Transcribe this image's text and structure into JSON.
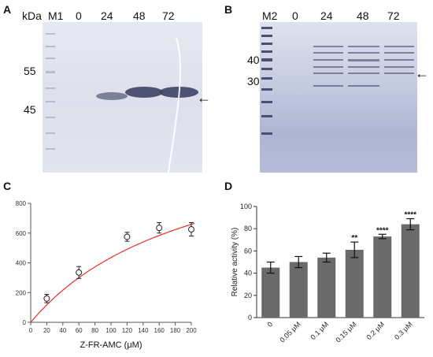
{
  "panel_a": {
    "label": "A",
    "unit": "kDa",
    "lanes": [
      "M1",
      "0",
      "24",
      "48",
      "72"
    ],
    "markers": [
      "55",
      "45"
    ],
    "arrow": "←"
  },
  "panel_b": {
    "label": "B",
    "lanes": [
      "M2",
      "0",
      "24",
      "48",
      "72"
    ],
    "markers": [
      "40",
      "30"
    ],
    "arrow": "←"
  },
  "panel_c": {
    "label": "C"
  },
  "panel_d": {
    "label": "D"
  },
  "chart_data": [
    {
      "type": "scatter",
      "xlabel": "Z-FR-AMC (μM)",
      "ylabel": "",
      "xlim": [
        0,
        200
      ],
      "ylim": [
        0,
        800
      ],
      "xticks": [
        "0",
        "20",
        "40",
        "60",
        "80",
        "100",
        "120",
        "140",
        "160",
        "180",
        "200"
      ],
      "yticks": [
        "0",
        "200",
        "400",
        "600",
        "800"
      ],
      "points": [
        {
          "x": 20,
          "y": 160,
          "err": 28
        },
        {
          "x": 60,
          "y": 335,
          "err": 40
        },
        {
          "x": 120,
          "y": 575,
          "err": 30
        },
        {
          "x": 160,
          "y": 635,
          "err": 35
        },
        {
          "x": 200,
          "y": 625,
          "err": 45
        }
      ],
      "fit": {
        "vmax": 1350,
        "km": 210,
        "color": "#e8302a"
      },
      "marker_color": "#222222"
    },
    {
      "type": "bar",
      "ylabel": "Relative activity (%)",
      "ylim": [
        0,
        100
      ],
      "yticks": [
        "0",
        "20",
        "40",
        "60",
        "80",
        "100"
      ],
      "categories": [
        "0",
        "0.05 μM",
        "0.1 μM",
        "0.15 μM",
        "0.2 μM",
        "0.3 μM"
      ],
      "values": [
        45,
        50,
        54,
        61,
        73,
        84
      ],
      "errors": [
        5,
        5,
        4,
        7,
        2,
        5
      ],
      "significance": [
        "",
        "",
        "",
        "**",
        "****",
        "****"
      ],
      "bar_color": "#6a6a6a"
    }
  ]
}
